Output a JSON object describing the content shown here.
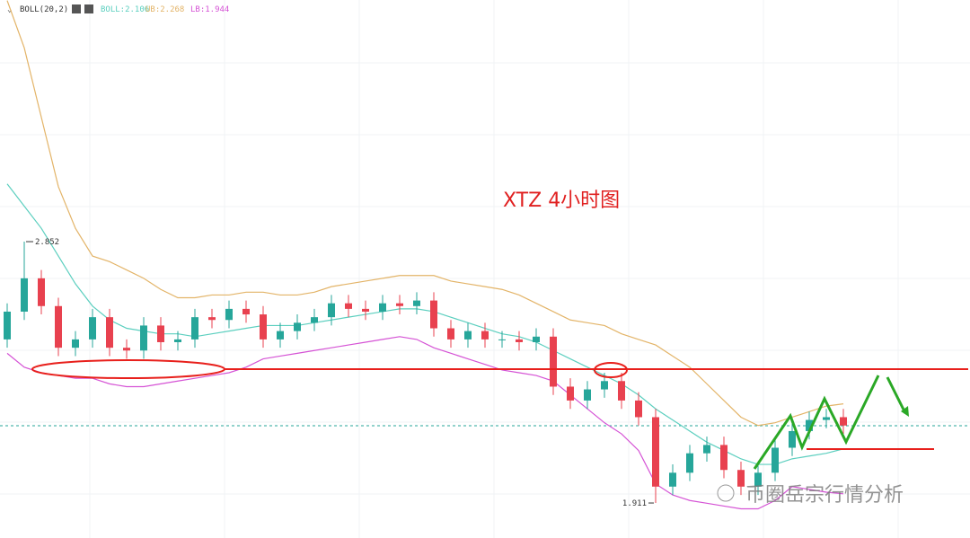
{
  "chart_data": {
    "type": "candlestick",
    "indicator": "BOLL(20,2)",
    "title": "XTZ  4小时图",
    "watermark": "币圈岳宗行情分析",
    "annotations": [
      "2.852",
      "1.911"
    ],
    "ylim": [
      1.785,
      3.722
    ],
    "up_color": "#26a69a",
    "down_color": "#e8414f",
    "open": [
      2.5,
      2.6,
      2.72,
      2.62,
      2.47,
      2.5,
      2.58,
      2.47,
      2.46,
      2.55,
      2.49,
      2.5,
      2.58,
      2.57,
      2.61,
      2.59,
      2.5,
      2.53,
      2.56,
      2.58,
      2.63,
      2.61,
      2.6,
      2.63,
      2.62,
      2.64,
      2.54,
      2.5,
      2.53,
      2.5,
      2.5,
      2.49,
      2.51,
      2.33,
      2.28,
      2.32,
      2.35,
      2.28,
      2.22,
      1.97,
      2.02,
      2.09,
      2.12,
      2.03,
      1.97,
      2.02,
      2.11,
      2.17,
      2.21,
      2.22
    ],
    "high": [
      2.63,
      2.852,
      2.75,
      2.65,
      2.53,
      2.61,
      2.61,
      2.5,
      2.58,
      2.58,
      2.53,
      2.61,
      2.61,
      2.64,
      2.64,
      2.62,
      2.56,
      2.59,
      2.61,
      2.66,
      2.66,
      2.64,
      2.66,
      2.66,
      2.67,
      2.67,
      2.57,
      2.56,
      2.56,
      2.53,
      2.53,
      2.54,
      2.54,
      2.36,
      2.35,
      2.38,
      2.38,
      2.31,
      2.25,
      2.05,
      2.12,
      2.15,
      2.15,
      2.06,
      2.05,
      2.14,
      2.2,
      2.24,
      2.25,
      2.25
    ],
    "low": [
      2.47,
      2.57,
      2.59,
      2.44,
      2.44,
      2.47,
      2.44,
      2.43,
      2.43,
      2.46,
      2.46,
      2.47,
      2.54,
      2.54,
      2.56,
      2.47,
      2.47,
      2.5,
      2.53,
      2.55,
      2.58,
      2.57,
      2.57,
      2.59,
      2.59,
      2.51,
      2.47,
      2.47,
      2.47,
      2.47,
      2.46,
      2.46,
      2.3,
      2.25,
      2.25,
      2.29,
      2.25,
      2.19,
      1.911,
      1.94,
      1.99,
      2.06,
      2.0,
      1.94,
      1.94,
      1.99,
      2.08,
      2.14,
      2.18,
      2.16
    ],
    "close": [
      2.6,
      2.72,
      2.62,
      2.47,
      2.5,
      2.58,
      2.47,
      2.46,
      2.55,
      2.49,
      2.5,
      2.58,
      2.57,
      2.61,
      2.59,
      2.5,
      2.53,
      2.56,
      2.58,
      2.63,
      2.61,
      2.6,
      2.63,
      2.62,
      2.64,
      2.54,
      2.5,
      2.53,
      2.5,
      2.5,
      2.49,
      2.51,
      2.33,
      2.28,
      2.32,
      2.35,
      2.28,
      2.22,
      1.97,
      2.02,
      2.09,
      2.12,
      2.03,
      1.97,
      2.02,
      2.11,
      2.17,
      2.21,
      2.22,
      2.19
    ],
    "series": [
      {
        "name": "BOLL:2.106",
        "color": "#5ccfbf",
        "values": [
          3.06,
          2.98,
          2.9,
          2.8,
          2.7,
          2.62,
          2.57,
          2.54,
          2.53,
          2.52,
          2.52,
          2.51,
          2.52,
          2.53,
          2.54,
          2.55,
          2.55,
          2.55,
          2.56,
          2.57,
          2.58,
          2.59,
          2.6,
          2.61,
          2.61,
          2.6,
          2.58,
          2.56,
          2.54,
          2.52,
          2.51,
          2.49,
          2.46,
          2.43,
          2.4,
          2.37,
          2.34,
          2.3,
          2.25,
          2.21,
          2.17,
          2.13,
          2.1,
          2.07,
          2.05,
          2.05,
          2.07,
          2.08,
          2.09,
          2.106
        ]
      },
      {
        "name": "UB:2.268",
        "color": "#e3b468",
        "values": [
          3.72,
          3.55,
          3.3,
          3.05,
          2.9,
          2.8,
          2.78,
          2.75,
          2.72,
          2.68,
          2.65,
          2.65,
          2.66,
          2.66,
          2.67,
          2.67,
          2.66,
          2.66,
          2.67,
          2.69,
          2.7,
          2.71,
          2.72,
          2.73,
          2.73,
          2.73,
          2.71,
          2.7,
          2.69,
          2.68,
          2.66,
          2.63,
          2.6,
          2.57,
          2.56,
          2.55,
          2.52,
          2.5,
          2.48,
          2.44,
          2.4,
          2.34,
          2.28,
          2.22,
          2.19,
          2.2,
          2.22,
          2.24,
          2.26,
          2.268
        ]
      },
      {
        "name": "LB:1.944",
        "color": "#d553d5",
        "values": [
          2.45,
          2.4,
          2.38,
          2.37,
          2.36,
          2.36,
          2.34,
          2.33,
          2.33,
          2.34,
          2.35,
          2.36,
          2.37,
          2.38,
          2.4,
          2.43,
          2.44,
          2.45,
          2.46,
          2.47,
          2.48,
          2.49,
          2.5,
          2.51,
          2.5,
          2.47,
          2.45,
          2.43,
          2.41,
          2.39,
          2.38,
          2.37,
          2.35,
          2.3,
          2.25,
          2.2,
          2.16,
          2.1,
          1.98,
          1.94,
          1.92,
          1.91,
          1.9,
          1.89,
          1.89,
          1.92,
          1.97,
          1.96,
          1.95,
          1.944
        ]
      }
    ]
  }
}
